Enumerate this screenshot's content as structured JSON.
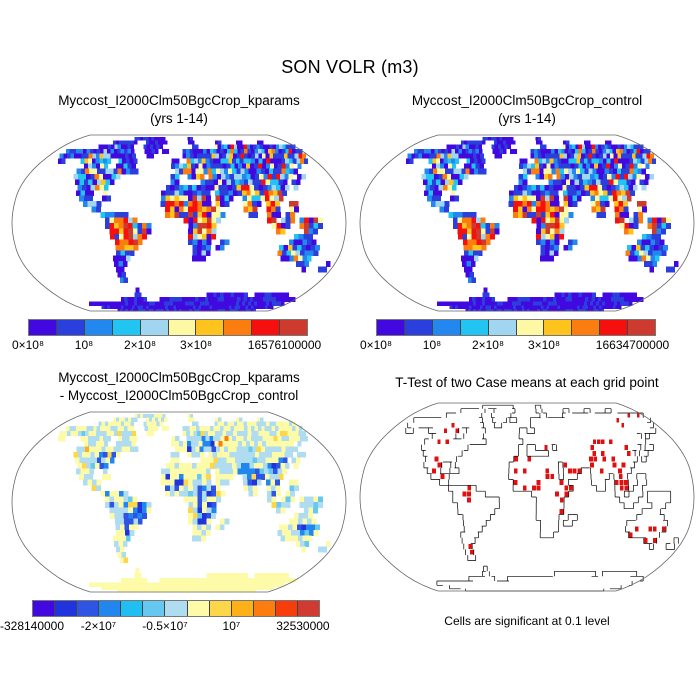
{
  "figure_title": "SON VOLR (m3)",
  "background": "#ffffff",
  "panels": {
    "kparams": {
      "title_line1": "Myccost_I2000Clm50BgcCrop_kparams",
      "title_line2": "(yrs 1-14)",
      "colorbar": {
        "ticks": [
          {
            "label": "0×10⁸",
            "pos": 0
          },
          {
            "label": "10⁸",
            "pos": 0.2
          },
          {
            "label": "2×10⁸",
            "pos": 0.4
          },
          {
            "label": "3×10⁸",
            "pos": 0.6
          },
          {
            "label": "16576100000",
            "pos": 1
          }
        ]
      }
    },
    "control": {
      "title_line1": "Myccost_I2000Clm50BgcCrop_control",
      "title_line2": "(yrs 1-14)",
      "colorbar": {
        "ticks": [
          {
            "label": "0×10⁸",
            "pos": 0
          },
          {
            "label": "10⁸",
            "pos": 0.2
          },
          {
            "label": "2×10⁸",
            "pos": 0.4
          },
          {
            "label": "3×10⁸",
            "pos": 0.6
          },
          {
            "label": "16634700000",
            "pos": 1
          }
        ]
      }
    },
    "diff": {
      "title_line1": "Myccost_I2000Clm50BgcCrop_kparams",
      "title_line2": "- Myccost_I2000Clm50BgcCrop_control",
      "colorbar": {
        "ticks": [
          {
            "label": "-328140000",
            "pos": 0
          },
          {
            "label": "-2×10⁷",
            "pos": 0.2308
          },
          {
            "label": "-0.5×10⁷",
            "pos": 0.4615
          },
          {
            "label": "10⁷",
            "pos": 0.6923
          },
          {
            "label": "32530000",
            "pos": 1
          }
        ]
      }
    },
    "ttest": {
      "title_line1": "T-Test of two Case means at each grid point",
      "caption": "Cells are significant at 0.1 level"
    }
  },
  "palettes": {
    "field": [
      "#4109df",
      "#2b3fdd",
      "#2287ee",
      "#22c4f2",
      "#a0d6f0",
      "#fdf8a3",
      "#ffc31e",
      "#fb7d10",
      "#f50f0f",
      "#cd3a2e"
    ],
    "diff": [
      "#4109df",
      "#2033dd",
      "#2e54e4",
      "#2187ef",
      "#21bef2",
      "#64c8f0",
      "#b0dcf2",
      "#fdfaa8",
      "#fdd64a",
      "#feb018",
      "#fb7d10",
      "#f83d0c",
      "#d03a30"
    ],
    "ttest_red": "#e01010",
    "map_border": "#666666",
    "coastline": "#000000"
  },
  "chart_data": [
    {
      "type": "heatmap",
      "projection": "robinson",
      "title": "Myccost_I2000Clm50BgcCrop_kparams (yrs 1-14)",
      "variable": "SON VOLR (m3)",
      "range_min": 0,
      "range_max": 16576100000,
      "colorbar_tick_labels": [
        "0×10⁸",
        "10⁸",
        "2×10⁸",
        "3×10⁸",
        "16576100000"
      ],
      "palette": "field",
      "legend_position": "below"
    },
    {
      "type": "heatmap",
      "projection": "robinson",
      "title": "Myccost_I2000Clm50BgcCrop_control (yrs 1-14)",
      "variable": "SON VOLR (m3)",
      "range_min": 0,
      "range_max": 16634700000,
      "colorbar_tick_labels": [
        "0×10⁸",
        "10⁸",
        "2×10⁸",
        "3×10⁸",
        "16634700000"
      ],
      "palette": "field",
      "legend_position": "below"
    },
    {
      "type": "heatmap",
      "projection": "robinson",
      "title": "Myccost_I2000Clm50BgcCrop_kparams - Myccost_I2000Clm50BgcCrop_control",
      "variable": "SON VOLR (m3) difference",
      "range_min": -328140000,
      "range_max": 32530000,
      "colorbar_tick_labels": [
        "-328140000",
        "-2×10⁷",
        "-0.5×10⁷",
        "10⁷",
        "32530000"
      ],
      "palette": "diff",
      "legend_position": "below"
    },
    {
      "type": "map",
      "projection": "robinson",
      "title": "T-Test of two Case means at each grid point",
      "annotation": "Cells are significant at 0.1 level",
      "significant_cell_color": "#e01010"
    }
  ],
  "map_geometry": {
    "grid": {
      "rows": 36,
      "cols": 72,
      "cell_degrees": 5
    },
    "land_rows": [
      [],
      [
        [
          20,
          31
        ],
        [
          39,
          41
        ]
      ],
      [
        [
          14,
          22
        ],
        [
          25,
          32
        ],
        [
          39,
          41
        ],
        [
          48,
          50
        ],
        [
          55,
          57
        ],
        [
          62,
          64
        ]
      ],
      [
        [
          11,
          22
        ],
        [
          25,
          31
        ],
        [
          40,
          42
        ],
        [
          47,
          72
        ]
      ],
      [
        [
          3,
          23
        ],
        [
          26,
          30
        ],
        [
          31,
          33
        ],
        [
          37,
          72
        ]
      ],
      [
        [
          3,
          24
        ],
        [
          27,
          29
        ],
        [
          37,
          71
        ]
      ],
      [
        [
          4,
          6
        ],
        [
          10,
          18
        ],
        [
          20,
          25
        ],
        [
          34,
          36
        ],
        [
          38,
          70
        ]
      ],
      [
        [
          12,
          18
        ],
        [
          20,
          25
        ],
        [
          34,
          65
        ],
        [
          66,
          67
        ]
      ],
      [
        [
          11,
          26
        ],
        [
          35,
          65
        ]
      ],
      [
        [
          11,
          22
        ],
        [
          34,
          36
        ],
        [
          38,
          42
        ],
        [
          43,
          63
        ],
        [
          64,
          66
        ]
      ],
      [
        [
          12,
          21
        ],
        [
          34,
          36
        ],
        [
          41,
          61
        ],
        [
          62,
          64
        ]
      ],
      [
        [
          13,
          20
        ],
        [
          33,
          61
        ],
        [
          62,
          63
        ]
      ],
      [
        [
          13,
          17
        ],
        [
          19,
          20
        ],
        [
          32,
          43
        ],
        [
          44,
          60
        ]
      ],
      [
        [
          14,
          17
        ],
        [
          19,
          21
        ],
        [
          32,
          43
        ],
        [
          44,
          48
        ],
        [
          50,
          59
        ]
      ],
      [
        [
          15,
          19
        ],
        [
          32,
          43
        ],
        [
          44,
          47
        ],
        [
          50,
          54
        ],
        [
          55,
          58
        ],
        [
          60,
          62
        ]
      ],
      [
        [
          17,
          19
        ],
        [
          33,
          45
        ],
        [
          50,
          53
        ],
        [
          55,
          58
        ],
        [
          60,
          62
        ]
      ],
      [
        [
          19,
          25
        ],
        [
          33,
          46
        ],
        [
          51,
          53
        ],
        [
          55,
          58
        ],
        [
          59,
          61
        ]
      ],
      [
        [
          20,
          27
        ],
        [
          37,
          45
        ],
        [
          55,
          57
        ],
        [
          58,
          61
        ],
        [
          62,
          67
        ]
      ],
      [
        [
          20,
          30
        ],
        [
          38,
          44
        ],
        [
          56,
          60
        ],
        [
          62,
          67
        ]
      ],
      [
        [
          21,
          30
        ],
        [
          38,
          44
        ],
        [
          57,
          59
        ],
        [
          63,
          66
        ]
      ],
      [
        [
          21,
          29
        ],
        [
          38,
          44
        ],
        [
          61,
          65
        ]
      ],
      [
        [
          22,
          28
        ],
        [
          38,
          43
        ],
        [
          45,
          47
        ],
        [
          60,
          66
        ]
      ],
      [
        [
          22,
          27
        ],
        [
          39,
          43
        ],
        [
          44,
          46
        ],
        [
          58,
          67
        ]
      ],
      [
        [
          22,
          26
        ],
        [
          39,
          43
        ],
        [
          58,
          67
        ]
      ],
      [
        [
          21,
          25
        ],
        [
          39,
          42
        ],
        [
          59,
          66
        ]
      ],
      [
        [
          21,
          24
        ],
        [
          63,
          66
        ],
        [
          70,
          71
        ]
      ],
      [
        [
          21,
          23
        ],
        [
          65,
          66
        ],
        [
          69,
          71
        ]
      ],
      [
        [
          21,
          23
        ]
      ],
      [
        [
          21,
          23
        ]
      ],
      [],
      [
        [
          24,
          25
        ]
      ],
      [
        [
          23,
          25
        ],
        [
          44,
          56
        ],
        [
          58,
          68
        ]
      ],
      [
        [
          18,
          26
        ],
        [
          30,
          72
        ]
      ],
      [
        [
          6,
          71
        ]
      ],
      [
        [
          8,
          70
        ]
      ],
      [
        [
          12,
          66
        ]
      ]
    ]
  },
  "map_overlays": {
    "field_hotspots": [
      [
        17,
        22,
        21,
        28,
        0.55,
        1.0,
        0.8
      ],
      [
        22,
        25,
        24,
        27,
        0.4,
        0.8,
        0.5
      ],
      [
        13,
        20,
        36,
        44,
        0.5,
        1.0,
        0.7
      ],
      [
        13,
        16,
        32,
        38,
        0.5,
        0.95,
        0.6
      ],
      [
        11,
        15,
        49,
        54,
        0.55,
        1.0,
        0.75
      ],
      [
        12,
        17,
        54,
        61,
        0.55,
        1.0,
        0.7
      ],
      [
        16,
        19,
        55,
        67,
        0.5,
        1.0,
        0.65
      ],
      [
        7,
        12,
        16,
        21,
        0.35,
        0.85,
        0.55
      ],
      [
        5,
        9,
        10,
        13,
        0.3,
        0.8,
        0.4
      ],
      [
        6,
        9,
        35,
        44,
        0.3,
        0.8,
        0.45
      ],
      [
        3,
        7,
        44,
        70,
        0.3,
        0.9,
        0.35
      ],
      [
        8,
        11,
        55,
        62,
        0.35,
        0.9,
        0.5
      ],
      [
        5,
        8,
        12,
        20,
        0.25,
        0.7,
        0.35
      ],
      [
        20,
        25,
        58,
        66,
        0.25,
        0.75,
        0.35
      ],
      [
        8,
        11,
        44,
        52,
        0.2,
        0.6,
        0.3
      ]
    ],
    "diff_blue_streaks": [
      [
        18,
        25,
        24,
        28,
        0.55
      ],
      [
        11,
        14,
        49,
        54,
        0.6
      ],
      [
        12,
        16,
        54,
        58,
        0.5
      ],
      [
        15,
        21,
        40,
        43,
        0.5
      ],
      [
        13,
        15,
        33,
        37,
        0.35
      ],
      [
        8,
        12,
        17,
        21,
        0.4
      ],
      [
        10,
        12,
        56,
        60,
        0.4
      ],
      [
        16,
        18,
        20,
        24,
        0.3
      ],
      [
        6,
        8,
        38,
        44,
        0.25
      ],
      [
        20,
        23,
        62,
        66,
        0.3
      ]
    ],
    "diff_orange_spots": [
      [
        6,
        8,
        13,
        17,
        0.12
      ],
      [
        6,
        9,
        46,
        56,
        0.1
      ],
      [
        8,
        10,
        12,
        14,
        0.1
      ],
      [
        4,
        6,
        60,
        68,
        0.08
      ]
    ],
    "ttest_red_regions": [
      [
        5,
        8,
        13,
        20,
        0.25
      ],
      [
        8,
        11,
        12,
        15,
        0.12
      ],
      [
        12,
        14,
        15,
        20,
        0.2
      ],
      [
        15,
        18,
        20,
        24,
        0.25
      ],
      [
        20,
        24,
        24,
        27,
        0.3
      ],
      [
        24,
        27,
        22,
        24,
        0.15
      ],
      [
        10,
        11,
        33,
        36,
        0.25
      ],
      [
        13,
        16,
        33,
        42,
        0.3
      ],
      [
        15,
        20,
        42,
        45,
        0.35
      ],
      [
        11,
        13,
        42,
        48,
        0.15
      ],
      [
        10,
        13,
        50,
        55,
        0.4
      ],
      [
        12,
        16,
        55,
        58,
        0.45
      ],
      [
        7,
        10,
        56,
        62,
        0.15
      ],
      [
        7,
        9,
        48,
        54,
        0.12
      ],
      [
        23,
        26,
        59,
        66,
        0.35
      ],
      [
        7,
        9,
        37,
        42,
        0.08
      ],
      [
        3,
        5,
        60,
        70,
        0.08
      ]
    ]
  }
}
